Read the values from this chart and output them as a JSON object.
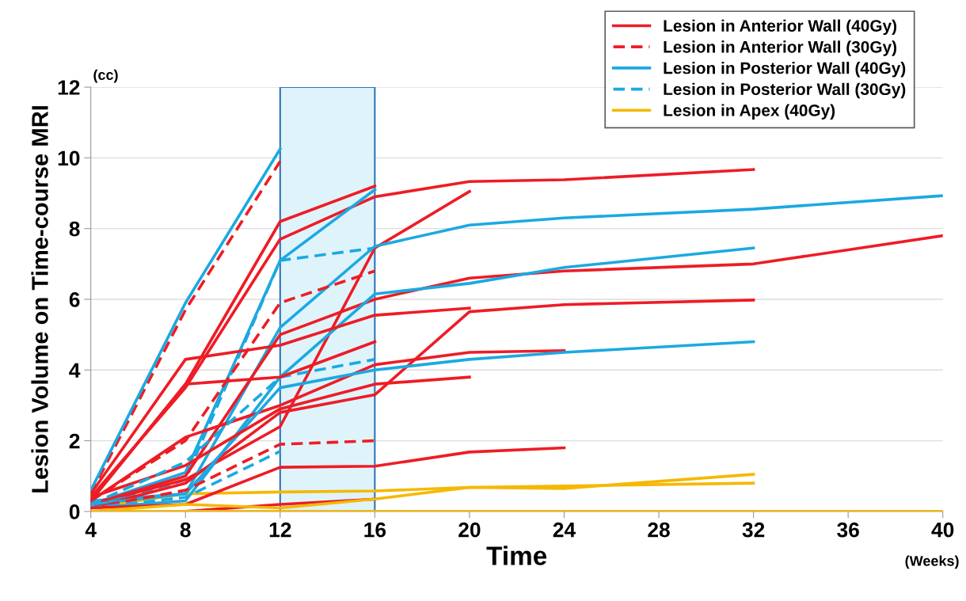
{
  "chart_data": {
    "type": "line",
    "xlabel": "Time",
    "ylabel": "Lesion Volume on Time-course MRI",
    "annotations": [
      "(cc)",
      "(Weeks)"
    ],
    "xlim": [
      4,
      40
    ],
    "xticks": [
      4,
      8,
      12,
      16,
      20,
      24,
      28,
      32,
      36,
      40
    ],
    "ylim": [
      0,
      12
    ],
    "yticks": [
      0,
      2,
      4,
      6,
      8,
      10,
      12
    ],
    "grid": "y",
    "legend": "top right",
    "marker": "none",
    "bands": [
      {
        "axis": "x",
        "from": 12,
        "to": 16,
        "color": "#dff3fb"
      }
    ],
    "series": [
      {
        "name": "Lesion in Anterior Wall (40Gy)",
        "color": "#ee1c25",
        "line_style": "solid",
        "x": [
          4,
          8,
          12,
          16
        ],
        "values": [
          0.3,
          3.6,
          8.2,
          9.2
        ]
      },
      {
        "name": "Lesion in Anterior Wall (30Gy)",
        "color": "#ee1c25",
        "line_style": "dashed",
        "x": [
          4,
          8,
          12
        ],
        "values": [
          0.5,
          5.7,
          9.9
        ]
      },
      {
        "name": "Lesion in Posterior Wall (40Gy)",
        "color": "#1ba9e1",
        "line_style": "solid",
        "x": [
          4,
          8,
          12
        ],
        "values": [
          0.6,
          5.9,
          10.25
        ]
      },
      {
        "name": "Lesion in Posterior Wall (30Gy)",
        "color": "#1ba9e1",
        "line_style": "dashed",
        "x": [
          4,
          8,
          12,
          16
        ],
        "values": [
          0.1,
          0.9,
          7.1,
          7.45
        ]
      },
      {
        "name": "Lesion in Apex (40Gy)",
        "color": "#f5b800",
        "line_style": "solid",
        "x": [
          4,
          8,
          12,
          16,
          20,
          24,
          32
        ],
        "values": [
          0.1,
          0.5,
          0.55,
          0.58,
          0.68,
          0.72,
          0.8
        ]
      },
      {
        "color": "#ee1c25",
        "line_style": "solid",
        "x": [
          4,
          8,
          12,
          16,
          20,
          24,
          32
        ],
        "values": [
          0.4,
          3.5,
          7.7,
          8.9,
          9.33,
          9.38,
          9.67
        ]
      },
      {
        "color": "#ee1c25",
        "line_style": "solid",
        "x": [
          4,
          8,
          12,
          16,
          20
        ],
        "values": [
          0.2,
          0.9,
          2.4,
          7.45,
          9.05
        ]
      },
      {
        "color": "#1ba9e1",
        "line_style": "solid",
        "x": [
          4,
          8,
          12,
          16
        ],
        "values": [
          0.2,
          1.1,
          7.1,
          9.1
        ]
      },
      {
        "color": "#1ba9e1",
        "line_style": "solid",
        "x": [
          4,
          8,
          12,
          16,
          20,
          24,
          32,
          40
        ],
        "values": [
          0.3,
          0.5,
          5.2,
          7.5,
          8.1,
          8.3,
          8.55,
          8.93
        ]
      },
      {
        "color": "#ee1c25",
        "line_style": "dashed",
        "x": [
          4,
          8,
          12,
          16
        ],
        "values": [
          0.3,
          2.0,
          5.9,
          6.8
        ]
      },
      {
        "color": "#ee1c25",
        "line_style": "solid",
        "x": [
          4,
          8,
          12,
          16,
          20,
          24,
          32,
          40
        ],
        "values": [
          0.2,
          1.0,
          5.0,
          6.0,
          6.6,
          6.8,
          7.0,
          7.8
        ]
      },
      {
        "color": "#1ba9e1",
        "line_style": "solid",
        "x": [
          4,
          8,
          12,
          16,
          20,
          24,
          32
        ],
        "values": [
          0.1,
          0.3,
          3.8,
          6.15,
          6.45,
          6.9,
          7.45
        ]
      },
      {
        "color": "#ee1c25",
        "line_style": "solid",
        "x": [
          4,
          8,
          12,
          16,
          20
        ],
        "values": [
          0.5,
          4.3,
          4.7,
          5.55,
          5.75
        ]
      },
      {
        "color": "#ee1c25",
        "line_style": "solid",
        "x": [
          4,
          8,
          12,
          16,
          20,
          24,
          32
        ],
        "values": [
          0.1,
          0.8,
          2.8,
          3.3,
          5.65,
          5.85,
          5.98
        ]
      },
      {
        "color": "#ee1c25",
        "line_style": "solid",
        "x": [
          4,
          8,
          12,
          16,
          20,
          24
        ],
        "values": [
          0.3,
          2.1,
          3.0,
          4.15,
          4.5,
          4.55
        ]
      },
      {
        "color": "#1ba9e1",
        "line_style": "solid",
        "x": [
          4,
          8,
          12,
          16,
          20,
          24,
          32
        ],
        "values": [
          0.2,
          0.5,
          3.5,
          4.0,
          4.3,
          4.5,
          4.8
        ]
      },
      {
        "color": "#ee1c25",
        "line_style": "solid",
        "x": [
          4,
          8,
          12,
          16,
          20
        ],
        "values": [
          0.4,
          1.3,
          2.9,
          3.6,
          3.8
        ]
      },
      {
        "color": "#1ba9e1",
        "line_style": "dashed",
        "x": [
          4,
          8,
          12,
          16
        ],
        "values": [
          0.2,
          1.4,
          3.8,
          4.3
        ]
      },
      {
        "color": "#ee1c25",
        "line_style": "solid",
        "x": [
          4,
          8,
          12,
          16
        ],
        "values": [
          0.3,
          3.6,
          3.8,
          4.8
        ]
      },
      {
        "color": "#ee1c25",
        "line_style": "dashed",
        "x": [
          4,
          8,
          12,
          16
        ],
        "values": [
          0.1,
          0.6,
          1.9,
          2.0
        ]
      },
      {
        "color": "#1ba9e1",
        "line_style": "dashed",
        "x": [
          4,
          8,
          12
        ],
        "values": [
          0.1,
          0.4,
          1.7
        ]
      },
      {
        "color": "#ee1c25",
        "line_style": "solid",
        "x": [
          4,
          8,
          12,
          16,
          20,
          24
        ],
        "values": [
          0.1,
          0.2,
          1.25,
          1.28,
          1.68,
          1.8
        ]
      },
      {
        "color": "#ee1c25",
        "line_style": "solid",
        "x": [
          4,
          8,
          12,
          16
        ],
        "values": [
          0.0,
          0.0,
          0.2,
          0.35
        ]
      },
      {
        "color": "#f5b800",
        "line_style": "solid",
        "x": [
          4,
          8,
          12,
          16,
          20,
          24,
          32
        ],
        "values": [
          0.0,
          0.2,
          0.1,
          0.35,
          0.68,
          0.65,
          1.05
        ]
      },
      {
        "color": "#f5b800",
        "line_style": "solid",
        "x": [
          4,
          8,
          12,
          16,
          20,
          24,
          32,
          40
        ],
        "values": [
          0,
          0,
          0,
          0,
          0,
          0,
          0,
          0
        ]
      }
    ]
  }
}
